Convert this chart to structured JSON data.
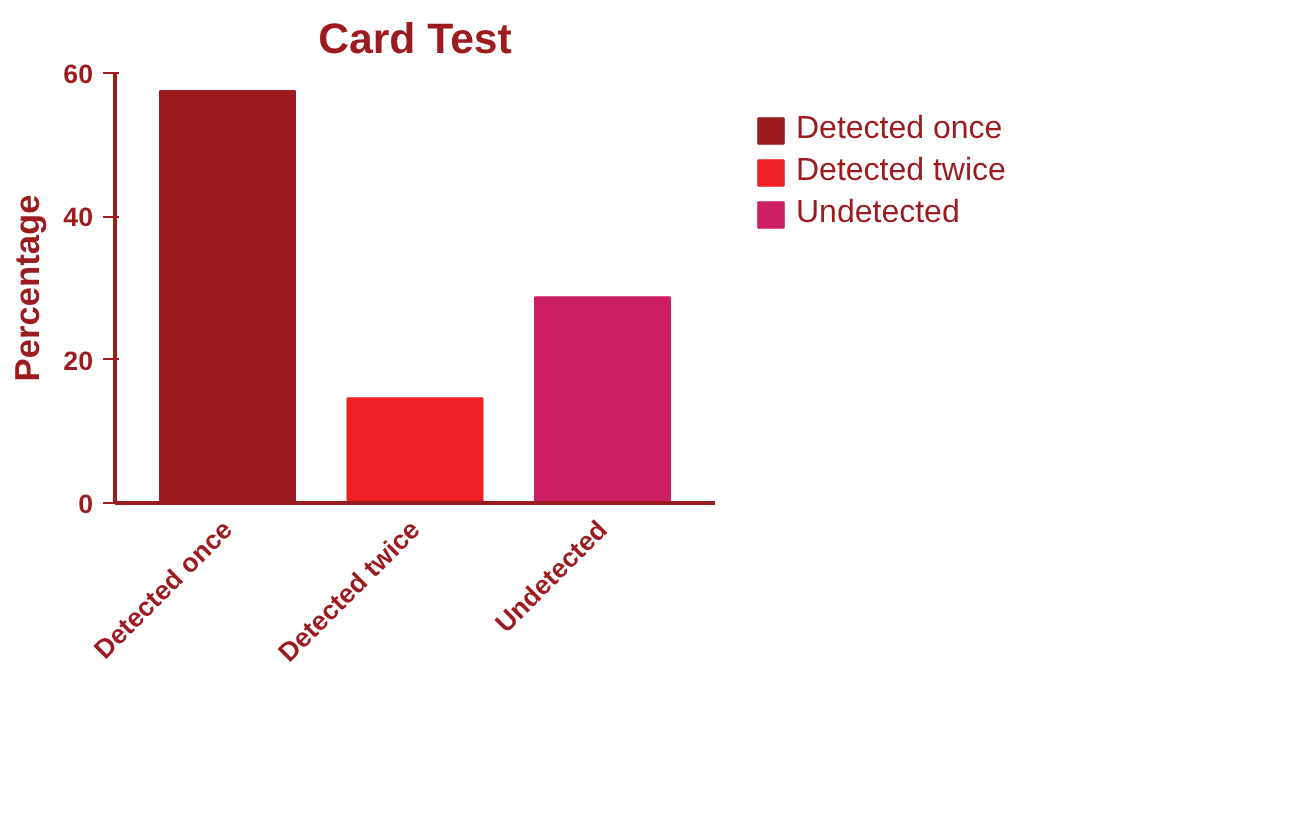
{
  "chart_data": {
    "type": "bar",
    "title": "Card Test",
    "ylabel": "Percentage",
    "categories": [
      "Detected once",
      "Detected twice",
      "Undetected"
    ],
    "series": [
      {
        "name": "Detected once",
        "color": "#9b1b1f",
        "values": [
          57.5,
          null,
          null
        ]
      },
      {
        "name": "Detected twice",
        "color": "#ee2024",
        "values": [
          null,
          14.6,
          null
        ]
      },
      {
        "name": "Undetected",
        "color": "#cc1f63",
        "values": [
          null,
          null,
          28.7
        ]
      }
    ],
    "ylim": [
      0,
      60
    ],
    "yticks": [
      0,
      20,
      40,
      60
    ],
    "legend": "right"
  }
}
